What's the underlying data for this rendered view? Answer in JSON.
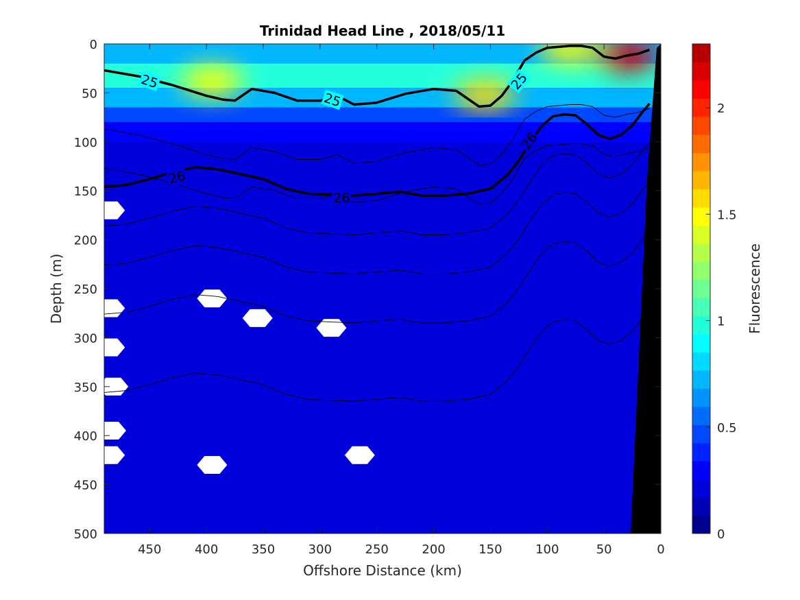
{
  "chart_data": {
    "type": "heatmap",
    "title": "Trinidad Head Line , 2018/05/11",
    "xlabel": "Offshore Distance (km)",
    "ylabel": "Depth (m)",
    "colorbar_label": "Fluorescence",
    "xlim": [
      490,
      0
    ],
    "ylim": [
      500,
      0
    ],
    "x_reversed": true,
    "y_reversed": true,
    "xticks": [
      450,
      400,
      350,
      300,
      250,
      200,
      150,
      100,
      50,
      0
    ],
    "yticks": [
      0,
      50,
      100,
      150,
      200,
      250,
      300,
      350,
      400,
      450,
      500
    ],
    "colorbar": {
      "range": [
        0,
        2.3
      ],
      "ticks": [
        0,
        0.5,
        1,
        1.5,
        2
      ],
      "tick_labels": [
        "0",
        "0.5",
        "1",
        "1.5",
        "2"
      ],
      "colors": [
        "#00008f",
        "#0000b6",
        "#0000da",
        "#0000ff",
        "#0024ff",
        "#0048ff",
        "#006dff",
        "#0092ff",
        "#00b6ff",
        "#00dbff",
        "#00ffff",
        "#24ffdb",
        "#48ffb6",
        "#6dff92",
        "#92ff6d",
        "#b6ff48",
        "#dbff24",
        "#ffff00",
        "#ffdb00",
        "#ffb600",
        "#ff9200",
        "#ff6d00",
        "#ff4800",
        "#ff2400",
        "#ff0000",
        "#db0000",
        "#b60000"
      ]
    },
    "isopycnals": [
      {
        "label": "25",
        "x": [
          490,
          460,
          430,
          400,
          385,
          375,
          360,
          340,
          320,
          300,
          285,
          270,
          250,
          225,
          200,
          180,
          170,
          160,
          150,
          140,
          130,
          120,
          110,
          100,
          90,
          80,
          70,
          60,
          50,
          40,
          30,
          20,
          10
        ],
        "y": [
          27,
          33,
          42,
          53,
          57,
          58,
          46,
          50,
          58,
          58,
          53,
          62,
          60,
          51,
          46,
          48,
          56,
          64,
          63,
          53,
          37,
          17,
          9,
          4,
          3,
          2,
          2,
          4,
          13,
          15,
          12,
          10,
          6
        ]
      },
      {
        "label": "26",
        "x": [
          490,
          470,
          450,
          430,
          410,
          390,
          370,
          350,
          330,
          310,
          290,
          270,
          250,
          230,
          210,
          190,
          170,
          150,
          135,
          125,
          115,
          105,
          95,
          85,
          75,
          65,
          55,
          45,
          35,
          25,
          15,
          10
        ],
        "y": [
          146,
          144,
          138,
          131,
          126,
          128,
          133,
          138,
          148,
          153,
          154,
          155,
          153,
          151,
          155,
          155,
          153,
          148,
          134,
          119,
          101,
          84,
          74,
          72,
          73,
          82,
          93,
          97,
          93,
          83,
          68,
          61
        ]
      }
    ],
    "contour_labels": [
      {
        "text": "25",
        "x": 450,
        "y": 38,
        "angle": 18
      },
      {
        "text": "25",
        "x": 289,
        "y": 57,
        "angle": 18
      },
      {
        "text": "25",
        "x": 125,
        "y": 38,
        "angle": -50
      },
      {
        "text": "26",
        "x": 426,
        "y": 136,
        "angle": -14
      },
      {
        "text": "26",
        "x": 281,
        "y": 157,
        "angle": 0
      },
      {
        "text": "26",
        "x": 116,
        "y": 99,
        "angle": -55
      }
    ],
    "blobs": [
      {
        "x": 395,
        "y": 38,
        "value": 1.45
      },
      {
        "x": 155,
        "y": 52,
        "value": 1.6
      },
      {
        "x": 30,
        "y": 12,
        "value": 2.15
      },
      {
        "x": 80,
        "y": 5,
        "value": 1.5
      }
    ],
    "nan_patches": [
      {
        "x": 395,
        "y": 260
      },
      {
        "x": 355,
        "y": 280
      },
      {
        "x": 290,
        "y": 290
      },
      {
        "x": 265,
        "y": 420
      },
      {
        "x": 395,
        "y": 430
      },
      {
        "x": 485,
        "y": 170
      },
      {
        "x": 485,
        "y": 270
      },
      {
        "x": 485,
        "y": 310
      },
      {
        "x": 482,
        "y": 350
      },
      {
        "x": 484,
        "y": 395
      },
      {
        "x": 485,
        "y": 420
      }
    ]
  },
  "colors": {
    "axis": "#262626",
    "seafloor": "#000000",
    "background": "#ffffff"
  }
}
